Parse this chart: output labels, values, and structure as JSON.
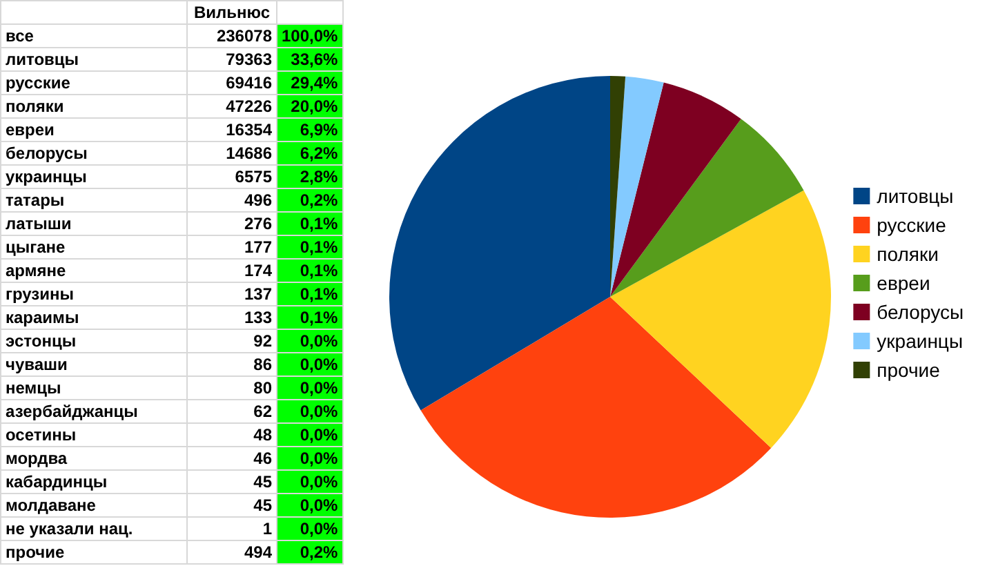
{
  "chart_data": [
    {
      "type": "other",
      "data_labels": true,
      "categories": [
        "все",
        "литовцы",
        "русские",
        "поляки",
        "евреи",
        "белорусы",
        "украинцы",
        "татары",
        "латыши",
        "цыгане",
        "армяне",
        "грузины",
        "караимы",
        "эстонцы",
        "чуваши",
        "немцы",
        "азербайджанцы",
        "осетины",
        "мордва",
        "кабардинцы",
        "молдаване",
        "не указали нац.",
        "прочие"
      ],
      "series": [
        {
          "name": "Вильнюс",
          "values": [
            236078,
            79363,
            69416,
            47226,
            16354,
            14686,
            6575,
            496,
            276,
            177,
            174,
            137,
            133,
            92,
            86,
            80,
            62,
            48,
            46,
            45,
            45,
            1,
            494
          ]
        },
        {
          "color": "#00ff00",
          "values": [
            100.0,
            33.6,
            29.4,
            20.0,
            6.9,
            6.2,
            2.8,
            0.2,
            0.1,
            0.1,
            0.1,
            0.1,
            0.1,
            0.0,
            0.0,
            0.0,
            0.0,
            0.0,
            0.0,
            0.0,
            0.0,
            0.0,
            0.2
          ],
          "value_labels": [
            "100,0%",
            "33,6%",
            "29,4%",
            "20,0%",
            "6,9%",
            "6,2%",
            "2,8%",
            "0,2%",
            "0,1%",
            "0,1%",
            "0,1%",
            "0,1%",
            "0,1%",
            "0,0%",
            "0,0%",
            "0,0%",
            "0,0%",
            "0,0%",
            "0,0%",
            "0,0%",
            "0,0%",
            "0,0%",
            "0,2%"
          ]
        }
      ]
    },
    {
      "type": "pie",
      "categories": [
        "литовцы",
        "русские",
        "поляки",
        "евреи",
        "белорусы",
        "украинцы",
        "прочие"
      ],
      "values": [
        33.6,
        29.4,
        20.0,
        6.9,
        6.2,
        2.8,
        1.1
      ],
      "colors": [
        "#004586",
        "#ff420e",
        "#ffd320",
        "#579d1c",
        "#7e0021",
        "#83caff",
        "#314004"
      ],
      "legend": "right"
    }
  ]
}
